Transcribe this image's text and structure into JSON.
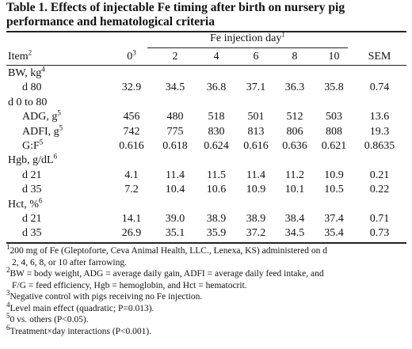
{
  "title": "Table 1. Effects of injectable Fe timing after birth on nursery pig performance and hematological criteria",
  "header": {
    "group_label": "Fe injection day",
    "group_sup": "1",
    "item_label": "Item",
    "item_sup": "2",
    "col0": "0",
    "col0_sup": "3",
    "days": [
      "2",
      "4",
      "6",
      "8",
      "10"
    ],
    "sem": "SEM"
  },
  "rows": [
    {
      "label": "BW, kg",
      "sup": "4",
      "indent": false,
      "values": []
    },
    {
      "label": "d 80",
      "sup": "",
      "indent": true,
      "values": [
        "32.9",
        "34.5",
        "36.8",
        "37.1",
        "36.3",
        "35.8",
        "0.74"
      ]
    },
    {
      "label": "d 0 to 80",
      "sup": "",
      "indent": false,
      "values": []
    },
    {
      "label": "ADG, g",
      "sup": "5",
      "indent": true,
      "values": [
        "456",
        "480",
        "518",
        "501",
        "512",
        "503",
        "13.6"
      ]
    },
    {
      "label": "ADFI, g",
      "sup": "5",
      "indent": true,
      "values": [
        "742",
        "775",
        "830",
        "813",
        "806",
        "808",
        "19.3"
      ]
    },
    {
      "label": "G:F",
      "sup": "5",
      "indent": true,
      "values": [
        "0.616",
        "0.618",
        "0.624",
        "0.616",
        "0.636",
        "0.621",
        "0.8635"
      ]
    },
    {
      "label": "Hgb, g/dL",
      "sup": "6",
      "indent": false,
      "values": []
    },
    {
      "label": "d 21",
      "sup": "",
      "indent": true,
      "values": [
        "4.1",
        "11.4",
        "11.5",
        "11.4",
        "11.2",
        "10.9",
        "0.21"
      ]
    },
    {
      "label": "d 35",
      "sup": "",
      "indent": true,
      "values": [
        "7.2",
        "10.4",
        "10.6",
        "10.9",
        "10.1",
        "10.5",
        "0.22"
      ]
    },
    {
      "label": "Hct, %",
      "sup": "6",
      "indent": false,
      "values": []
    },
    {
      "label": "d 21",
      "sup": "",
      "indent": true,
      "values": [
        "14.1",
        "39.0",
        "38.9",
        "38.9",
        "38.4",
        "37.4",
        "0.71"
      ]
    },
    {
      "label": "d 35",
      "sup": "",
      "indent": true,
      "values": [
        "26.9",
        "35.1",
        "35.9",
        "37.2",
        "34.5",
        "35.4",
        "0.73"
      ]
    }
  ],
  "footnotes": [
    {
      "mark": "1",
      "lines": [
        "200 mg of Fe (Gleptoforte, Ceva Animal Health, LLC., Lenexa, KS) administered on d",
        "2, 4, 6, 8, or 10 after farrowing."
      ]
    },
    {
      "mark": "2",
      "lines": [
        "BW = body weight, ADG = average daily gain, ADFI = average daily feed intake, and",
        "F/G = feed efficiency, Hgb = hemoglobin, and Hct = hematocrit."
      ]
    },
    {
      "mark": "3",
      "lines": [
        "Negative control with pigs receiving no Fe injection."
      ]
    },
    {
      "mark": "4",
      "lines": [
        "Level main effect (quadratic; P=0.013)."
      ]
    },
    {
      "mark": "5",
      "lines": [
        "0 vs. others (P<0.05)."
      ]
    },
    {
      "mark": "6",
      "lines": [
        "Treatment×day interactions (P<0.001)."
      ]
    }
  ]
}
